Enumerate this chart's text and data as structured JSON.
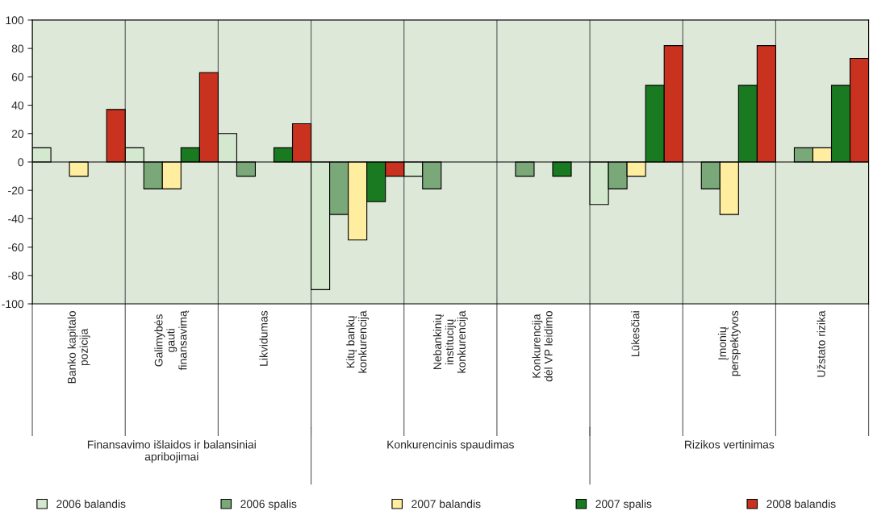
{
  "chart_data": {
    "type": "bar",
    "categories": [
      "Banko kapitalo\npozicija",
      "Galimybės\ngauti\nfinansavimą",
      "Likvidumas",
      "Kitų bankų\nkonkurencija",
      "Nebankinių\ninstitucijų\nkonkurencija",
      "Konkurencija\ndėl VP leidimo",
      "Lūkesčiai",
      "Įmonių\nperspektyvos",
      "Užstato rizika"
    ],
    "series": [
      {
        "name": "2006 balandis",
        "color": "#d4e8cf",
        "values": [
          10,
          10,
          20,
          -90,
          -10,
          null,
          -30,
          null,
          null
        ]
      },
      {
        "name": "2006 spalis",
        "color": "#7ba878",
        "values": [
          null,
          -19,
          -10,
          -37,
          -19,
          -10,
          -19,
          -19,
          10
        ]
      },
      {
        "name": "2007 balandis",
        "color": "#ffeda0",
        "values": [
          -10,
          -19,
          null,
          -55,
          null,
          null,
          -10,
          -37,
          10
        ]
      },
      {
        "name": "2007 spalis",
        "color": "#1a7a22",
        "values": [
          null,
          10,
          10,
          -28,
          null,
          -10,
          54,
          54,
          54
        ]
      },
      {
        "name": "2008 balandis",
        "color": "#c8321e",
        "values": [
          37,
          63,
          27,
          -10,
          null,
          null,
          82,
          82,
          73
        ]
      }
    ],
    "annotations": [
      "Finansavimo išlaidos ir balansiniai\napribojimai",
      "Konkurencinis spaudimas",
      "Rizikos vertinimas"
    ],
    "ylim": [
      -100,
      100
    ],
    "yticks": [
      -100,
      -80,
      -60,
      -40,
      -20,
      0,
      20,
      40,
      60,
      80,
      100
    ],
    "grid": "x",
    "legend": "bottom"
  }
}
